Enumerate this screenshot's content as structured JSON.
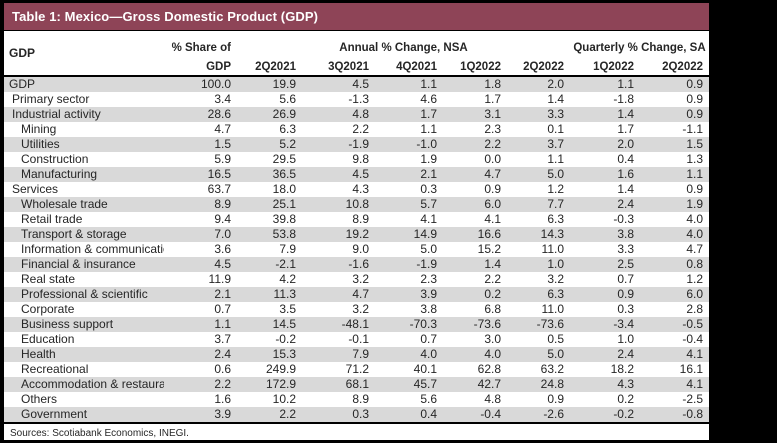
{
  "title": "Table 1: Mexico—Gross Domestic Product (GDP)",
  "header": {
    "row_label": "GDP",
    "share_line1": "% Share of",
    "share_line2": "GDP",
    "annual_group": "Annual % Change, NSA",
    "quarterly_group": "Quarterly % Change, SA",
    "annual_quarters": [
      "2Q2021",
      "3Q2021",
      "4Q2021",
      "1Q2022",
      "2Q2022"
    ],
    "quarterly_quarters": [
      "1Q2022",
      "2Q2022"
    ]
  },
  "chart_data": {
    "type": "table",
    "title": "Table 1: Mexico—Gross Domestic Product (GDP)",
    "columns": [
      "% Share of GDP",
      "Annual % Change NSA 2Q2021",
      "Annual % Change NSA 3Q2021",
      "Annual % Change NSA 4Q2021",
      "Annual % Change NSA 1Q2022",
      "Annual % Change NSA 2Q2022",
      "Quarterly % Change SA 1Q2022",
      "Quarterly % Change SA 2Q2022"
    ]
  },
  "rows": [
    {
      "label": "GDP",
      "indent": 0,
      "values": [
        "100.0",
        "19.9",
        "4.5",
        "1.1",
        "1.8",
        "2.0",
        "1.1",
        "0.9"
      ]
    },
    {
      "label": "Primary sector",
      "indent": 1,
      "values": [
        "3.4",
        "5.6",
        "-1.3",
        "4.6",
        "1.7",
        "1.4",
        "-1.8",
        "0.9"
      ]
    },
    {
      "label": "Industrial activity",
      "indent": 1,
      "values": [
        "28.6",
        "26.9",
        "4.8",
        "1.7",
        "3.1",
        "3.3",
        "1.4",
        "0.9"
      ]
    },
    {
      "label": "Mining",
      "indent": 2,
      "values": [
        "4.7",
        "6.3",
        "2.2",
        "1.1",
        "2.3",
        "0.1",
        "1.7",
        "-1.1"
      ]
    },
    {
      "label": "Utilities",
      "indent": 2,
      "values": [
        "1.5",
        "5.2",
        "-1.9",
        "-1.0",
        "2.2",
        "3.7",
        "2.0",
        "1.5"
      ]
    },
    {
      "label": "Construction",
      "indent": 2,
      "values": [
        "5.9",
        "29.5",
        "9.8",
        "1.9",
        "0.0",
        "1.1",
        "0.4",
        "1.3"
      ]
    },
    {
      "label": "Manufacturing",
      "indent": 2,
      "values": [
        "16.5",
        "36.5",
        "4.5",
        "2.1",
        "4.7",
        "5.0",
        "1.6",
        "1.1"
      ]
    },
    {
      "label": "Services",
      "indent": 1,
      "values": [
        "63.7",
        "18.0",
        "4.3",
        "0.3",
        "0.9",
        "1.2",
        "1.4",
        "0.9"
      ]
    },
    {
      "label": "Wholesale trade",
      "indent": 2,
      "values": [
        "8.9",
        "25.1",
        "10.8",
        "5.7",
        "6.0",
        "7.7",
        "2.4",
        "1.9"
      ]
    },
    {
      "label": "Retail trade",
      "indent": 2,
      "values": [
        "9.4",
        "39.8",
        "8.9",
        "4.1",
        "4.1",
        "6.3",
        "-0.3",
        "4.0"
      ]
    },
    {
      "label": "Transport & storage",
      "indent": 2,
      "values": [
        "7.0",
        "53.8",
        "19.2",
        "14.9",
        "16.6",
        "14.3",
        "3.8",
        "4.0"
      ]
    },
    {
      "label": "Information & communication",
      "indent": 2,
      "values": [
        "3.6",
        "7.9",
        "9.0",
        "5.0",
        "15.2",
        "11.0",
        "3.3",
        "4.7"
      ]
    },
    {
      "label": "Financial & insurance",
      "indent": 2,
      "values": [
        "4.5",
        "-2.1",
        "-1.6",
        "-1.9",
        "1.4",
        "1.0",
        "2.5",
        "0.8"
      ]
    },
    {
      "label": "Real state",
      "indent": 2,
      "values": [
        "11.9",
        "4.2",
        "3.2",
        "2.3",
        "2.2",
        "3.2",
        "0.7",
        "1.2"
      ]
    },
    {
      "label": "Professional & scientific",
      "indent": 2,
      "values": [
        "2.1",
        "11.3",
        "4.7",
        "3.9",
        "0.2",
        "6.3",
        "0.9",
        "6.0"
      ]
    },
    {
      "label": "Corporate",
      "indent": 2,
      "values": [
        "0.7",
        "3.5",
        "3.2",
        "3.8",
        "6.8",
        "11.0",
        "0.3",
        "2.8"
      ]
    },
    {
      "label": "Business support",
      "indent": 2,
      "values": [
        "1.1",
        "14.5",
        "-48.1",
        "-70.3",
        "-73.6",
        "-73.6",
        "-3.4",
        "-0.5"
      ]
    },
    {
      "label": "Education",
      "indent": 2,
      "values": [
        "3.7",
        "-0.2",
        "-0.1",
        "0.7",
        "3.0",
        "0.5",
        "1.0",
        "-0.4"
      ]
    },
    {
      "label": "Health",
      "indent": 2,
      "values": [
        "2.4",
        "15.3",
        "7.9",
        "4.0",
        "4.0",
        "5.0",
        "2.4",
        "4.1"
      ]
    },
    {
      "label": "Recreational",
      "indent": 2,
      "values": [
        "0.6",
        "249.9",
        "71.2",
        "40.1",
        "62.8",
        "63.2",
        "18.2",
        "16.1"
      ]
    },
    {
      "label": "Accommodation & restaurant",
      "indent": 2,
      "values": [
        "2.2",
        "172.9",
        "68.1",
        "45.7",
        "42.7",
        "24.8",
        "4.3",
        "4.1"
      ]
    },
    {
      "label": "Others",
      "indent": 2,
      "values": [
        "1.6",
        "10.2",
        "8.9",
        "5.6",
        "4.8",
        "0.9",
        "0.2",
        "-2.5"
      ]
    },
    {
      "label": "Government",
      "indent": 2,
      "values": [
        "3.9",
        "2.2",
        "0.3",
        "0.4",
        "-0.4",
        "-2.6",
        "-0.2",
        "-0.8"
      ]
    }
  ],
  "footer": "Sources: Scotiabank Economics, INEGI.",
  "colors": {
    "title_bg": "#8E4457",
    "row_alt": "#D9D9D9",
    "border": "#000000",
    "ink": "#262626"
  }
}
